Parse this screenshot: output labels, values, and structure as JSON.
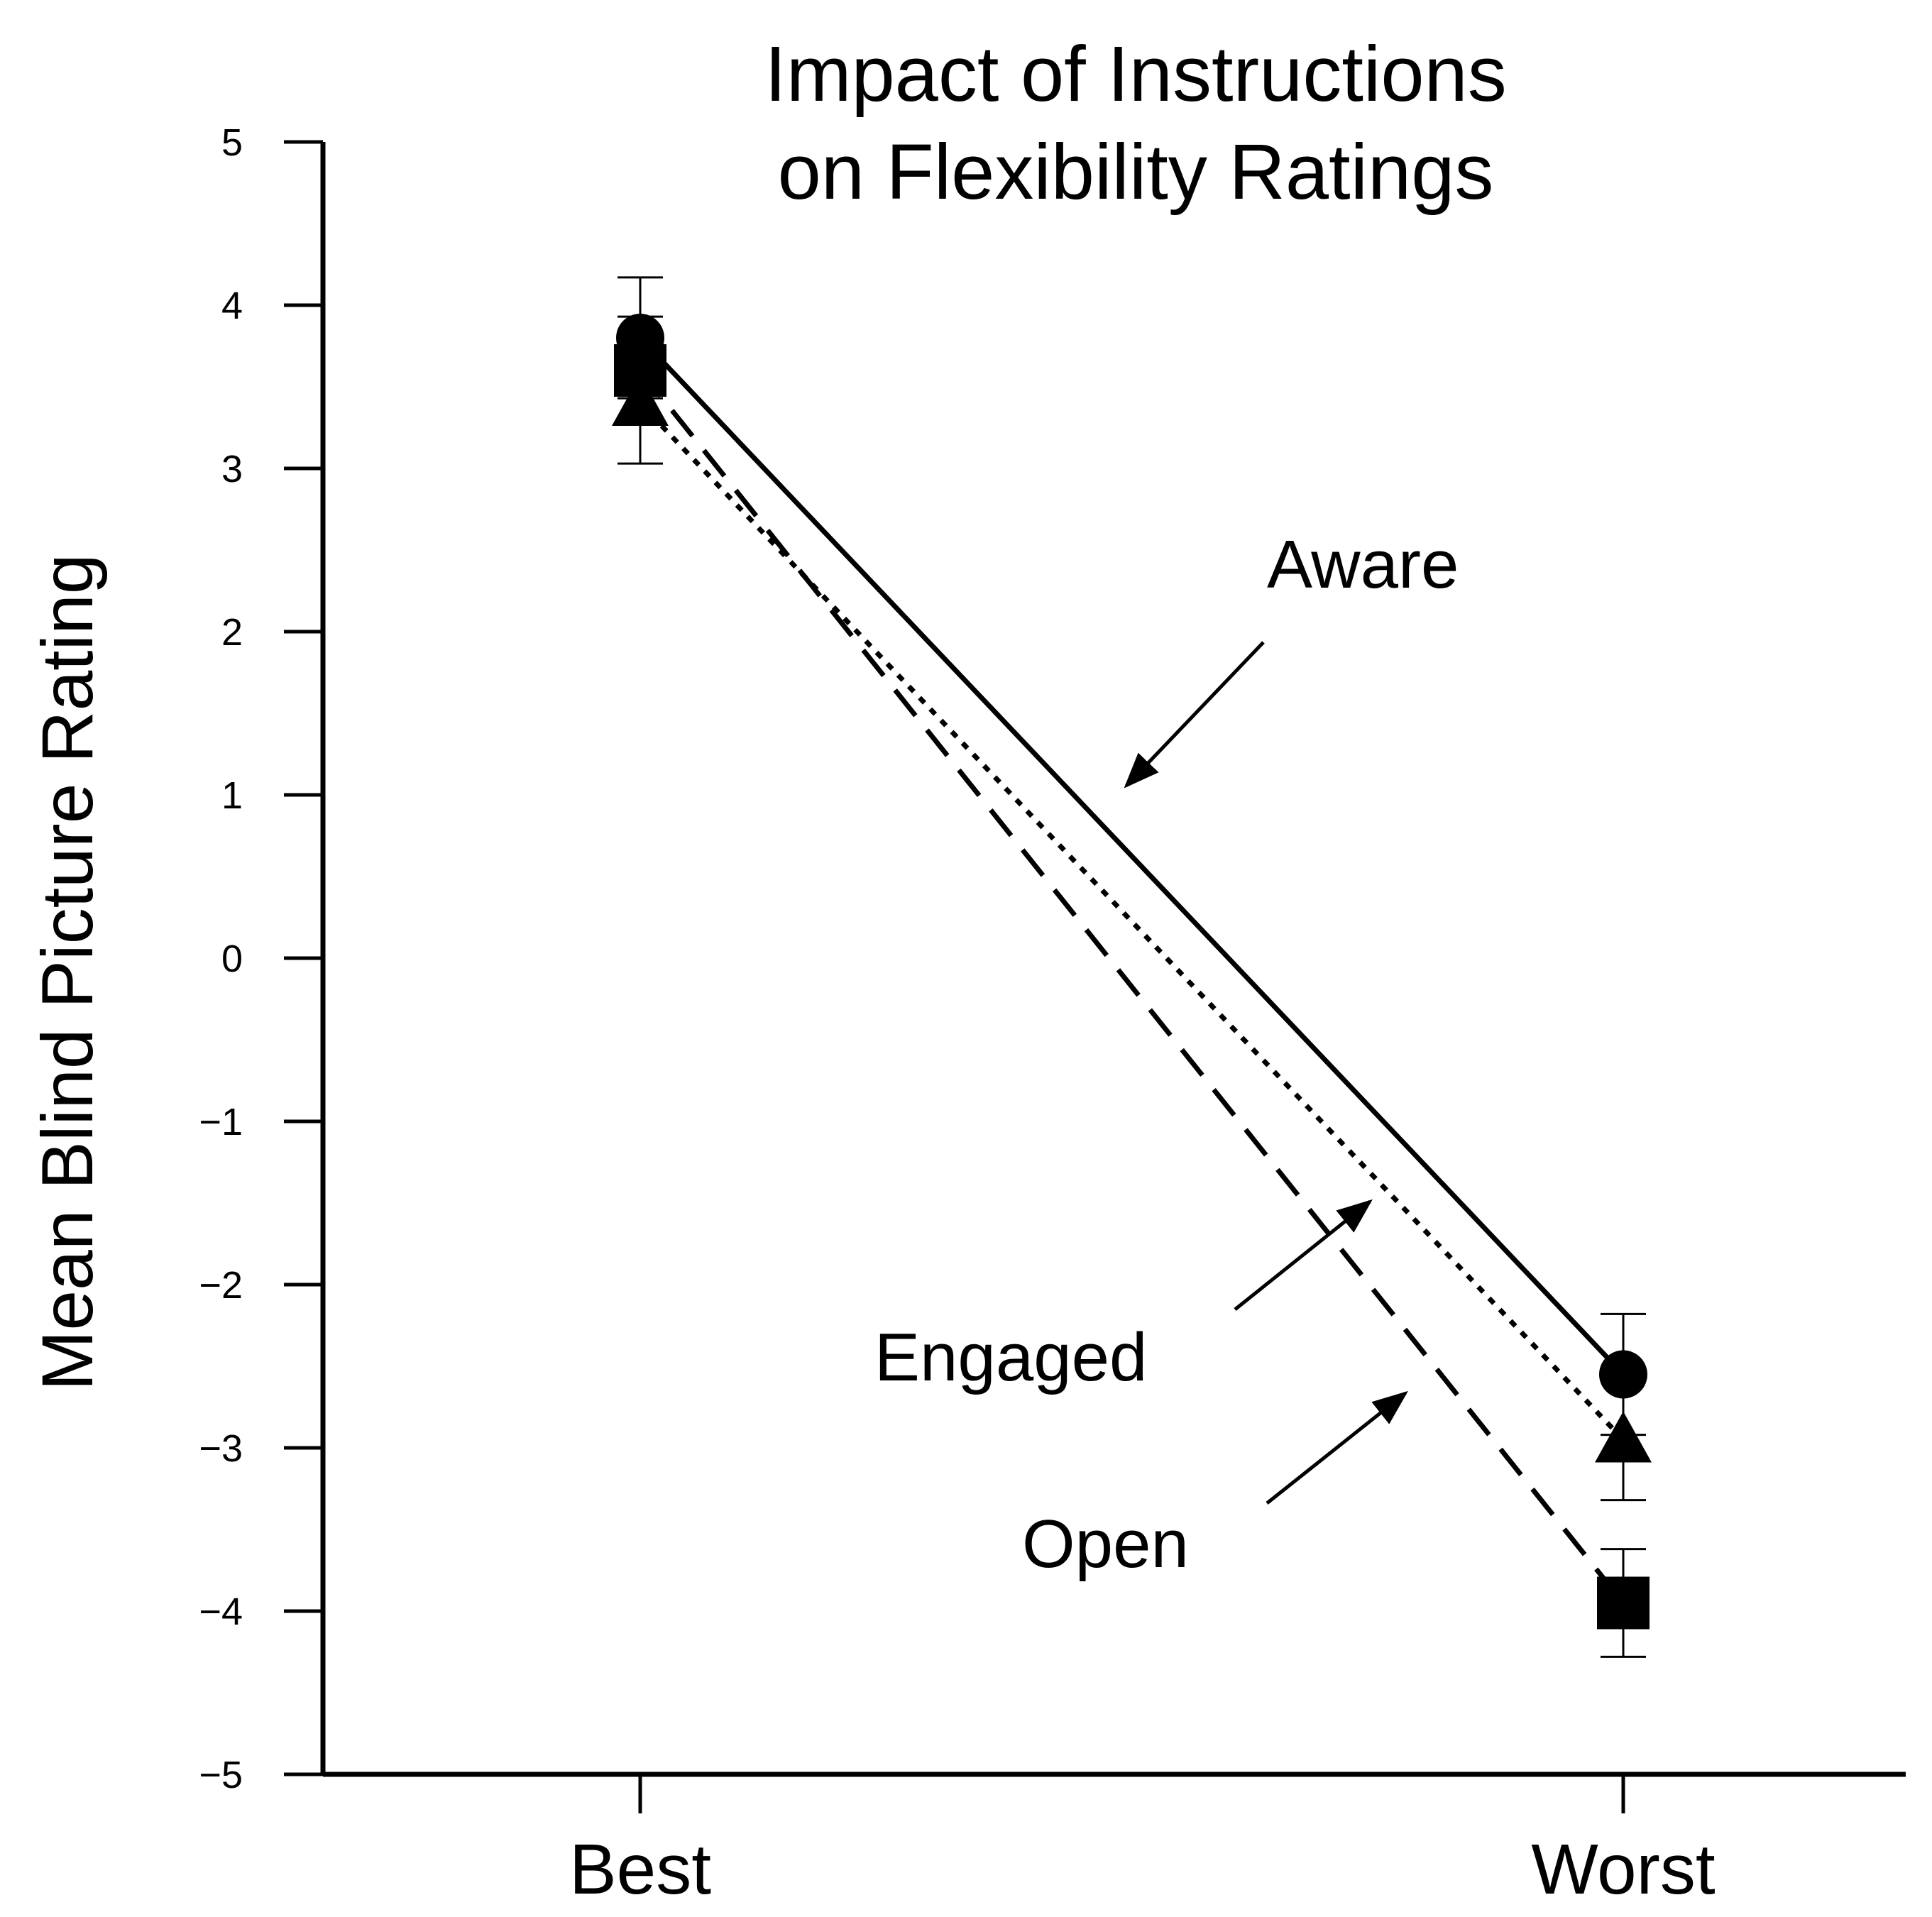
{
  "chart_data": {
    "type": "line",
    "title_lines": [
      "Impact of Instructions",
      "on Flexibility Ratings"
    ],
    "xlabel": "",
    "ylabel": "Mean Blind  Picture Rating",
    "categories": [
      "Best",
      "Worst"
    ],
    "ylim": [
      -5,
      5
    ],
    "yticks": [
      5,
      4,
      3,
      2,
      1,
      0,
      -1,
      -2,
      -3,
      -4,
      -5
    ],
    "ytick_labels": [
      "5",
      "4",
      "3",
      "2",
      "1",
      "0",
      "−1",
      "−2",
      "−3",
      "−4",
      "−5"
    ],
    "grid": false,
    "series": [
      {
        "name": "Aware",
        "values": [
          3.8,
          -2.55
        ],
        "marker": "circle",
        "line": "solid",
        "error": [
          0.37,
          0.37
        ]
      },
      {
        "name": "Engaged",
        "values": [
          3.4,
          -2.95
        ],
        "marker": "triangle",
        "line": "dotted",
        "error": [
          0.37,
          0.37
        ]
      },
      {
        "name": "Open",
        "values": [
          3.6,
          -3.95
        ],
        "marker": "square",
        "line": "dashed",
        "error": [
          0.33,
          0.33
        ]
      }
    ],
    "annotations": [
      {
        "text": "Aware",
        "series": "Aware"
      },
      {
        "text": "Engaged",
        "series": "Engaged"
      },
      {
        "text": "Open",
        "series": "Open"
      }
    ],
    "colors": {
      "ink": "#000000",
      "background": "#ffffff"
    }
  }
}
